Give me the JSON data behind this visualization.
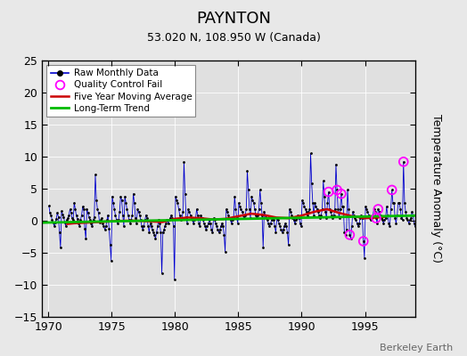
{
  "title": "PAYNTON",
  "subtitle": "53.020 N, 108.950 W (Canada)",
  "ylabel": "Temperature Anomaly (°C)",
  "watermark": "Berkeley Earth",
  "xlim": [
    1969.5,
    1999.0
  ],
  "ylim": [
    -15,
    25
  ],
  "yticks": [
    -15,
    -10,
    -5,
    0,
    5,
    10,
    15,
    20,
    25
  ],
  "xticks": [
    1970,
    1975,
    1980,
    1985,
    1990,
    1995
  ],
  "plot_bg": "#e0e0e0",
  "fig_bg": "#e8e8e8",
  "raw_color": "#0000cc",
  "moving_avg_color": "#cc0000",
  "trend_color": "#00bb00",
  "qc_fail_color": "#ff00ff",
  "raw_monthly_data": [
    1970.042,
    2.3,
    1970.125,
    1.2,
    1970.208,
    0.8,
    1970.292,
    0.2,
    1970.375,
    -0.3,
    1970.458,
    -0.8,
    1970.542,
    -0.3,
    1970.625,
    0.3,
    1970.708,
    1.2,
    1970.792,
    0.6,
    1970.875,
    -1.8,
    1970.958,
    -4.2,
    1971.042,
    1.5,
    1971.125,
    1.0,
    1971.208,
    0.6,
    1971.292,
    -0.3,
    1971.375,
    -0.8,
    1971.458,
    0.2,
    1971.542,
    0.4,
    1971.625,
    0.9,
    1971.708,
    1.8,
    1971.792,
    1.2,
    1971.875,
    0.4,
    1971.958,
    0.1,
    1972.042,
    2.8,
    1972.125,
    1.8,
    1972.208,
    0.8,
    1972.292,
    0.3,
    1972.375,
    -0.4,
    1972.458,
    -0.8,
    1972.542,
    0.1,
    1972.625,
    0.9,
    1972.708,
    2.2,
    1972.792,
    1.8,
    1972.875,
    -1.2,
    1972.958,
    -2.8,
    1973.042,
    1.8,
    1973.125,
    1.2,
    1973.208,
    0.6,
    1973.292,
    0.1,
    1973.375,
    -0.4,
    1973.458,
    -0.9,
    1973.542,
    0.1,
    1973.625,
    0.6,
    1973.708,
    7.2,
    1973.792,
    3.2,
    1973.875,
    1.8,
    1973.958,
    1.2,
    1974.042,
    -0.3,
    1974.125,
    0.1,
    1974.208,
    0.4,
    1974.292,
    -0.4,
    1974.375,
    -0.9,
    1974.458,
    -1.4,
    1974.542,
    -0.9,
    1974.625,
    0.1,
    1974.708,
    0.9,
    1974.792,
    -1.2,
    1974.875,
    -3.8,
    1974.958,
    -6.2,
    1975.042,
    3.8,
    1975.125,
    2.8,
    1975.208,
    1.8,
    1975.292,
    0.9,
    1975.375,
    0.1,
    1975.458,
    -0.4,
    1975.542,
    0.1,
    1975.625,
    1.4,
    1975.708,
    3.8,
    1975.792,
    3.2,
    1975.875,
    0.9,
    1975.958,
    -0.8,
    1976.042,
    3.8,
    1976.125,
    2.8,
    1976.208,
    1.8,
    1976.292,
    0.9,
    1976.375,
    0.1,
    1976.458,
    -0.4,
    1976.542,
    0.1,
    1976.625,
    0.9,
    1976.708,
    4.2,
    1976.792,
    2.8,
    1976.875,
    0.4,
    1976.958,
    -0.4,
    1977.042,
    1.8,
    1977.125,
    1.4,
    1977.208,
    0.9,
    1977.292,
    0.1,
    1977.375,
    -0.8,
    1977.458,
    -1.4,
    1977.542,
    -0.8,
    1977.625,
    0.1,
    1977.708,
    0.9,
    1977.792,
    0.4,
    1977.875,
    -0.8,
    1977.958,
    -1.8,
    1978.042,
    -0.4,
    1978.125,
    -0.9,
    1978.208,
    -1.4,
    1978.292,
    -1.8,
    1978.375,
    -2.2,
    1978.458,
    -2.8,
    1978.542,
    -1.8,
    1978.625,
    -0.9,
    1978.708,
    0.1,
    1978.792,
    -0.4,
    1978.875,
    -1.8,
    1978.958,
    -8.2,
    1979.042,
    -1.8,
    1979.125,
    -1.4,
    1979.208,
    -0.8,
    1979.292,
    -0.4,
    1979.375,
    0.1,
    1979.458,
    -0.4,
    1979.542,
    0.1,
    1979.625,
    0.4,
    1979.708,
    0.9,
    1979.792,
    0.4,
    1979.875,
    -0.8,
    1979.958,
    -9.2,
    1980.042,
    3.8,
    1980.125,
    3.2,
    1980.208,
    2.8,
    1980.292,
    1.8,
    1980.375,
    0.9,
    1980.458,
    0.1,
    1980.542,
    0.4,
    1980.625,
    1.4,
    1980.708,
    9.2,
    1980.792,
    4.2,
    1980.875,
    0.6,
    1980.958,
    -0.4,
    1981.042,
    1.8,
    1981.125,
    1.4,
    1981.208,
    0.9,
    1981.292,
    0.4,
    1981.375,
    0.1,
    1981.458,
    -0.4,
    1981.542,
    0.1,
    1981.625,
    0.4,
    1981.708,
    1.8,
    1981.792,
    0.9,
    1981.875,
    -0.4,
    1981.958,
    -0.9,
    1982.042,
    0.9,
    1982.125,
    0.4,
    1982.208,
    0.1,
    1982.292,
    -0.4,
    1982.375,
    -0.9,
    1982.458,
    -1.4,
    1982.542,
    -0.9,
    1982.625,
    -0.4,
    1982.708,
    0.1,
    1982.792,
    -0.4,
    1982.875,
    -1.4,
    1982.958,
    -1.8,
    1983.042,
    0.4,
    1983.125,
    0.1,
    1983.208,
    -0.4,
    1983.292,
    -0.9,
    1983.375,
    -1.4,
    1983.458,
    -1.8,
    1983.542,
    -1.4,
    1983.625,
    -0.9,
    1983.708,
    -0.4,
    1983.792,
    -0.9,
    1983.875,
    -2.2,
    1983.958,
    -4.8,
    1984.042,
    1.8,
    1984.125,
    1.4,
    1984.208,
    0.9,
    1984.292,
    0.4,
    1984.375,
    0.1,
    1984.458,
    -0.4,
    1984.542,
    0.1,
    1984.625,
    0.4,
    1984.708,
    3.8,
    1984.792,
    1.8,
    1984.875,
    0.4,
    1984.958,
    -0.4,
    1985.042,
    2.8,
    1985.125,
    2.2,
    1985.208,
    1.8,
    1985.292,
    1.4,
    1985.375,
    0.9,
    1985.458,
    0.4,
    1985.542,
    0.9,
    1985.625,
    1.8,
    1985.708,
    7.8,
    1985.792,
    4.8,
    1985.875,
    1.8,
    1985.958,
    0.4,
    1986.042,
    3.8,
    1986.125,
    3.2,
    1986.208,
    2.8,
    1986.292,
    1.8,
    1986.375,
    0.9,
    1986.458,
    0.4,
    1986.542,
    0.9,
    1986.625,
    1.8,
    1986.708,
    4.8,
    1986.792,
    2.8,
    1986.875,
    0.9,
    1986.958,
    -4.2,
    1987.042,
    1.4,
    1987.125,
    0.9,
    1987.208,
    0.4,
    1987.292,
    0.1,
    1987.375,
    -0.4,
    1987.458,
    -0.9,
    1987.542,
    -0.4,
    1987.625,
    0.1,
    1987.708,
    0.4,
    1987.792,
    0.1,
    1987.875,
    -0.9,
    1987.958,
    -1.8,
    1988.042,
    0.4,
    1988.125,
    0.1,
    1988.208,
    -0.4,
    1988.292,
    -0.9,
    1988.375,
    -1.4,
    1988.458,
    -1.8,
    1988.542,
    -1.4,
    1988.625,
    -0.9,
    1988.708,
    -0.4,
    1988.792,
    -0.9,
    1988.875,
    -1.8,
    1988.958,
    -3.8,
    1989.042,
    1.8,
    1989.125,
    1.4,
    1989.208,
    0.9,
    1989.292,
    0.4,
    1989.375,
    0.1,
    1989.458,
    -0.4,
    1989.542,
    0.1,
    1989.625,
    0.4,
    1989.708,
    0.9,
    1989.792,
    0.4,
    1989.875,
    -0.4,
    1989.958,
    -0.9,
    1990.042,
    3.2,
    1990.125,
    2.8,
    1990.208,
    2.2,
    1990.292,
    1.8,
    1990.375,
    1.4,
    1990.458,
    0.9,
    1990.542,
    1.4,
    1990.625,
    1.8,
    1990.708,
    10.5,
    1990.792,
    5.8,
    1990.875,
    2.8,
    1990.958,
    0.9,
    1991.042,
    2.8,
    1991.125,
    2.2,
    1991.208,
    1.8,
    1991.292,
    1.4,
    1991.375,
    0.9,
    1991.458,
    0.4,
    1991.542,
    0.9,
    1991.625,
    1.8,
    1991.708,
    6.2,
    1991.792,
    3.8,
    1991.875,
    1.4,
    1991.958,
    0.4,
    1992.042,
    2.8,
    1992.125,
    4.5,
    1992.208,
    1.8,
    1992.292,
    1.4,
    1992.375,
    0.9,
    1992.458,
    0.4,
    1992.542,
    0.9,
    1992.625,
    1.8,
    1992.708,
    8.8,
    1992.792,
    4.8,
    1992.875,
    1.8,
    1992.958,
    0.4,
    1993.042,
    1.8,
    1993.125,
    4.2,
    1993.208,
    2.2,
    1993.292,
    2.2,
    1993.375,
    -1.8,
    1993.458,
    -2.2,
    1993.542,
    -1.4,
    1993.625,
    4.8,
    1993.708,
    1.8,
    1993.792,
    -2.2,
    1993.875,
    -2.8,
    1993.958,
    -0.9,
    1994.042,
    1.4,
    1994.125,
    0.9,
    1994.208,
    0.4,
    1994.292,
    0.1,
    1994.375,
    -0.4,
    1994.458,
    -0.9,
    1994.542,
    -0.4,
    1994.625,
    0.4,
    1994.708,
    0.9,
    1994.792,
    0.4,
    1994.875,
    -3.2,
    1994.958,
    -5.8,
    1995.042,
    2.2,
    1995.125,
    1.8,
    1995.208,
    1.4,
    1995.292,
    0.9,
    1995.375,
    0.4,
    1995.458,
    0.1,
    1995.542,
    0.4,
    1995.625,
    0.9,
    1995.708,
    1.8,
    1995.792,
    1.4,
    1995.875,
    0.4,
    1995.958,
    -0.4,
    1996.042,
    1.8,
    1996.125,
    1.4,
    1996.208,
    0.9,
    1996.292,
    0.4,
    1996.375,
    0.1,
    1996.458,
    -0.4,
    1996.542,
    0.1,
    1996.625,
    0.4,
    1996.708,
    2.2,
    1996.792,
    0.9,
    1996.875,
    -0.4,
    1996.958,
    -0.9,
    1997.042,
    1.8,
    1997.125,
    4.8,
    1997.208,
    2.8,
    1997.292,
    2.8,
    1997.375,
    0.4,
    1997.458,
    -0.4,
    1997.542,
    0.9,
    1997.625,
    2.8,
    1997.708,
    2.8,
    1997.792,
    1.8,
    1997.875,
    0.4,
    1997.958,
    0.1,
    1998.042,
    9.2,
    1998.125,
    2.8,
    1998.208,
    1.4,
    1998.292,
    0.4,
    1998.375,
    0.1,
    1998.458,
    -0.4,
    1998.542,
    0.1,
    1998.625,
    0.4,
    1998.708,
    1.4,
    1998.792,
    0.9,
    1998.875,
    -0.4,
    1998.958,
    -0.9
  ],
  "qc_fail_points": [
    [
      1992.125,
      4.5
    ],
    [
      1992.792,
      4.8
    ],
    [
      1993.125,
      4.2
    ],
    [
      1993.792,
      -2.2
    ],
    [
      1994.875,
      -3.2
    ],
    [
      1995.875,
      0.4
    ],
    [
      1996.042,
      1.8
    ],
    [
      1997.125,
      4.8
    ],
    [
      1998.042,
      9.2
    ]
  ],
  "moving_avg_x": [
    1971.5,
    1972,
    1973,
    1974,
    1975,
    1976,
    1977,
    1978,
    1979,
    1980,
    1981,
    1982,
    1983,
    1984,
    1985,
    1986,
    1987,
    1988,
    1989,
    1990,
    1991,
    1992,
    1993,
    1994,
    1995,
    1996,
    1996.5
  ],
  "moving_avg_y": [
    -0.5,
    -0.4,
    -0.3,
    -0.2,
    -0.1,
    0.0,
    0.0,
    -0.1,
    -0.2,
    0.3,
    0.5,
    0.4,
    0.2,
    0.3,
    0.7,
    1.1,
    0.9,
    0.5,
    0.4,
    0.8,
    1.4,
    1.8,
    1.2,
    0.7,
    0.4,
    0.5,
    0.6
  ],
  "trend_x": [
    1969.5,
    1999.0
  ],
  "trend_y": [
    -0.3,
    0.8
  ],
  "title_fontsize": 13,
  "subtitle_fontsize": 9,
  "tick_fontsize": 9,
  "ylabel_fontsize": 9
}
